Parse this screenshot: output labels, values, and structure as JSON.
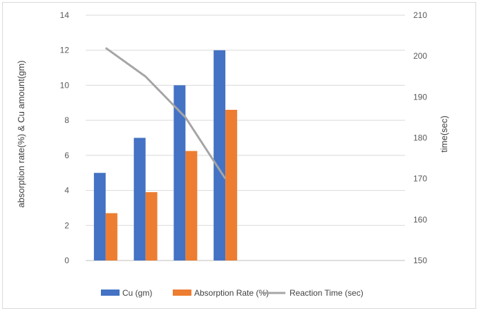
{
  "chart_data": {
    "type": "bar",
    "categories": [
      "",
      "",
      "",
      ""
    ],
    "series": [
      {
        "name": "Cu (gm)",
        "type": "bar",
        "axis": "left",
        "color": "#4472c4",
        "values": [
          5,
          7,
          10,
          12
        ]
      },
      {
        "name": "Absorption Rate (%)",
        "type": "bar",
        "axis": "left",
        "color": "#ed7d31",
        "values": [
          2.7,
          3.9,
          6.25,
          8.6
        ]
      },
      {
        "name": "Reaction Time (sec)",
        "type": "line",
        "axis": "right",
        "color": "#a5a5a5",
        "values": [
          202,
          195,
          185,
          170
        ]
      }
    ],
    "category_slots": 8,
    "ylabel": "absorption rate(%) & Cu amount(gm)",
    "y2label": "time(sec)",
    "ylim": [
      0,
      14
    ],
    "y_ticks": [
      "0",
      "2",
      "4",
      "6",
      "8",
      "10",
      "12",
      "14"
    ],
    "y2lim": [
      150,
      210
    ],
    "y2_ticks": [
      "150",
      "160",
      "170",
      "180",
      "190",
      "200",
      "210"
    ],
    "grid": true,
    "legend_position": "bottom"
  }
}
